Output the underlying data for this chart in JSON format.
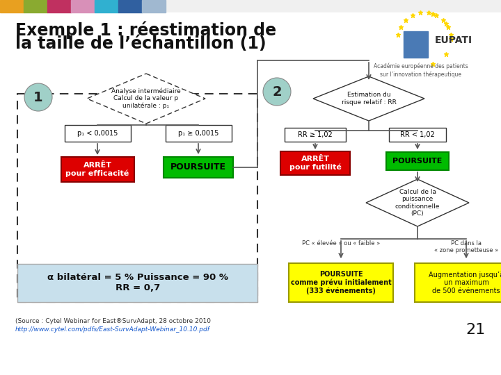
{
  "title_line1": "Exemple 1 : réestimation de",
  "title_line2": "la taille de l’échantillon (1)",
  "bg_color": "#f0f0f0",
  "header_colors": [
    "#e8a020",
    "#8aaa30",
    "#c03060",
    "#d890b8",
    "#30b0d0",
    "#3060a0",
    "#a0b8d0"
  ],
  "footer_source": "(Source : Cytel Webinar for East®SurvAdapt, 28 octobre 2010",
  "footer_url": "http://www.cytel.com/pdfs/East-SurvAdapt-Webinar_10.10.pdf",
  "page_number": "21",
  "alpha_text": "α bilatéral = 5 % Puissance = 90 %\nRR = 0,7",
  "dashed_box_color": "#333333",
  "light_blue_box": "#c8e0ec",
  "diamond1_text": "Analyse intermédiaire\nCalcul de la valeur p\nunilatérale : p₁",
  "diamond2_text": "Estimation du\nrisque relatif : RR",
  "diamond3_text": "Calcul de la\npuissance\nconditionnelle\n(PC)",
  "cond1_left": "p₁ < 0,0015",
  "cond1_right": "p₁ ≥ 0,0015",
  "cond2_left": "RR ≥ 1,02",
  "cond2_right": "RR < 1,02",
  "cond3_left": "PC « élevée » ou « faible »",
  "cond3_right": "PC dans la\n« zone prometteuse »",
  "box_arret_efficacite": "ARRÊT\npour efficacité",
  "box_poursuite1": "POURSUITE",
  "box_arret_futilite": "ARRÊT\npour futilité",
  "box_poursuite2": "POURSUITE",
  "box_poursuite_initial": "POURSUITE\ncomme prévu initialement\n(333 événements)",
  "box_augmentation": "Augmentation jusqu’à\nun maximum\nde 500 événements",
  "circle1_text": "1",
  "circle2_text": "2",
  "circle_color": "#a0d0c8",
  "red_color": "#dd0000",
  "green_color": "#00bb00",
  "yellow_color": "#ffff00",
  "eupati_subtitle": "Académie européenne des patients\nsur l’innovation thérapeutique",
  "line_color": "#555555",
  "box_edge_color": "#333333"
}
